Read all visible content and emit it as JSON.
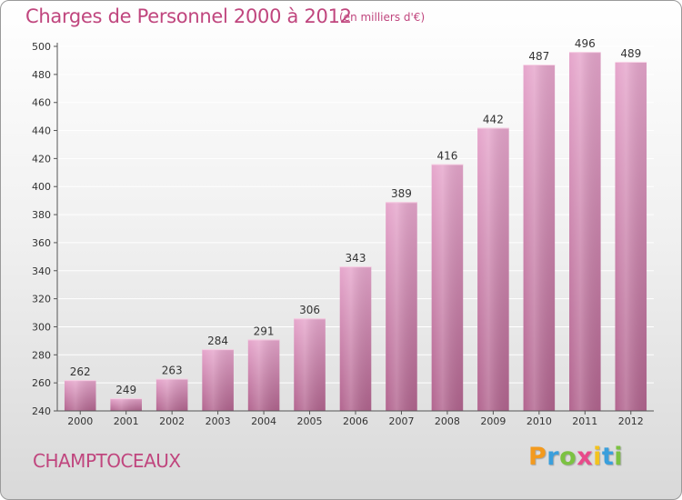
{
  "title": "Charges de Personnel 2000 à 2012",
  "subtitle": "(en milliers d'€)",
  "commune": "CHAMPTOCEAUX",
  "logo": {
    "letters": [
      "P",
      "r",
      "o",
      "x",
      "i",
      "t",
      "i"
    ],
    "colors": [
      "#f39a1e",
      "#3a9fdc",
      "#7cc242",
      "#e84a8a",
      "#f3c31e",
      "#3a9fdc",
      "#7cc242"
    ]
  },
  "colors": {
    "title": "#c0467e",
    "bar_top": "#e6a6cc",
    "bar_bottom": "#b2658f",
    "grid": "#ffffff",
    "text": "#333333"
  },
  "chart_data": {
    "type": "bar",
    "categories": [
      "2000",
      "2001",
      "2002",
      "2003",
      "2004",
      "2005",
      "2006",
      "2007",
      "2008",
      "2009",
      "2010",
      "2011",
      "2012"
    ],
    "values": [
      262,
      249,
      263,
      284,
      291,
      306,
      343,
      389,
      416,
      442,
      487,
      496,
      489
    ],
    "yticks": [
      "240",
      "260",
      "280",
      "300",
      "320",
      "340",
      "360",
      "380",
      "400",
      "420",
      "440",
      "460",
      "480",
      "500"
    ],
    "ylim": [
      240,
      500
    ],
    "grid": true
  }
}
